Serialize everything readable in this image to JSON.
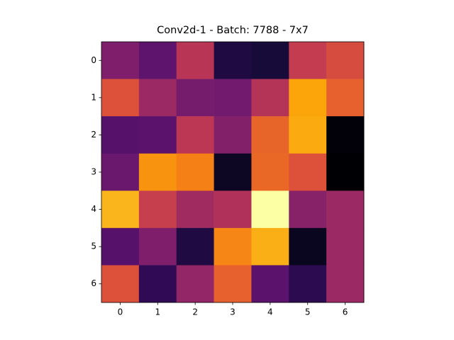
{
  "chart_data": {
    "type": "heatmap",
    "title": "Conv2d-1 - Batch: 7788 - 7x7",
    "colormap": "inferno",
    "xlim": [
      -0.5,
      6.5
    ],
    "ylim": [
      6.5,
      -0.5
    ],
    "xticks": [
      0,
      1,
      2,
      3,
      4,
      5,
      6
    ],
    "yticks": [
      0,
      1,
      2,
      3,
      4,
      5,
      6
    ],
    "values": [
      [
        0.35,
        0.27,
        0.49,
        0.12,
        0.1,
        0.52,
        0.58
      ],
      [
        0.6,
        0.42,
        0.33,
        0.32,
        0.48,
        0.8,
        0.64
      ],
      [
        0.25,
        0.26,
        0.5,
        0.36,
        0.65,
        0.81,
        0.01
      ],
      [
        0.3,
        0.76,
        0.72,
        0.06,
        0.66,
        0.6,
        0
      ],
      [
        0.83,
        0.53,
        0.43,
        0.47,
        1.0,
        0.37,
        0.42
      ],
      [
        0.25,
        0.35,
        0.12,
        0.73,
        0.82,
        0.05,
        0.42
      ],
      [
        0.6,
        0.16,
        0.4,
        0.64,
        0.26,
        0.15,
        0.42
      ]
    ]
  }
}
